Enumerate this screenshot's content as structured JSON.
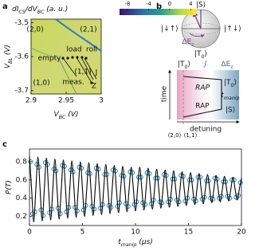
{
  "panel_labels": [
    "a",
    "b",
    "c"
  ],
  "chart_data": [
    {
      "type": "heatmap",
      "xlabel": [
        "V",
        "BC",
        " (V)"
      ],
      "ylabel": [
        "V",
        "BL",
        " (V)"
      ],
      "xlim": [
        2.9,
        3.0
      ],
      "ylim": [
        -3.71,
        -3.49
      ],
      "xticks": [
        2.9,
        2.95,
        3
      ],
      "yticks": [
        -3.5,
        -3.6,
        -3.7
      ],
      "colorbar": {
        "label": [
          "dI",
          "CS",
          "/dV",
          "BC",
          " (a. u.)"
        ],
        "lim": [
          -9.5,
          5
        ],
        "ticks": [
          -8,
          -4,
          0,
          4
        ]
      },
      "region_labels": [
        "(2,0)",
        "(2,1)",
        "(1,0)",
        "(1,1)"
      ],
      "annotations": [
        "empty",
        "load",
        "roll",
        "meas.",
        "J",
        "Z"
      ]
    },
    {
      "type": "line",
      "xlabel": [
        "t",
        "manip",
        " (μs)"
      ],
      "ylabel": "P(T)",
      "xlim": [
        0,
        20
      ],
      "ylim": [
        0.1,
        0.94
      ],
      "xticks": [
        0,
        5,
        10,
        15,
        20
      ],
      "yticks": [
        0.2,
        0.4,
        0.6,
        0.8
      ],
      "series": [
        {
          "type": "scatter",
          "color": "#2b8cc4",
          "x": [
            0.1,
            0.3,
            0.5,
            0.7,
            0.9,
            1.1,
            1.3,
            1.5,
            1.7,
            1.9,
            2.1,
            2.3,
            2.5,
            2.7,
            2.9,
            3.1,
            3.3,
            3.5,
            3.7,
            3.9,
            4.1,
            4.3,
            4.5,
            4.7,
            4.9,
            5.1,
            5.3,
            5.5,
            5.7,
            5.9,
            6.1,
            6.3,
            6.5,
            6.7,
            6.9,
            7.1,
            7.3,
            7.5,
            7.7,
            7.9,
            8.1,
            8.3,
            8.5,
            8.7,
            8.9,
            9.1,
            9.3,
            9.5,
            9.7,
            9.9,
            10.1,
            10.3,
            10.5,
            10.7,
            10.9,
            11.1,
            11.3,
            11.5,
            11.7,
            11.9,
            12.1,
            12.3,
            12.5,
            12.7,
            12.9,
            13.1,
            13.3,
            13.5,
            13.7,
            13.9,
            14.1,
            14.3,
            14.5,
            14.7,
            14.9,
            15.1,
            15.3,
            15.5,
            15.7,
            15.9,
            16.1,
            16.3,
            16.5,
            16.7,
            16.9,
            17.1,
            17.3,
            17.5,
            17.7,
            17.9,
            18.1,
            18.3,
            18.5,
            18.7,
            18.9,
            19.1,
            19.3,
            19.5,
            19.7,
            19.9
          ],
          "values": [
            0.8,
            0.23,
            0.25,
            0.77,
            0.74,
            0.27,
            0.21,
            0.79,
            0.77,
            0.24,
            0.28,
            0.72,
            0.7,
            0.29,
            0.23,
            0.76,
            0.75,
            0.25,
            0.3,
            0.71,
            0.69,
            0.3,
            0.26,
            0.74,
            0.73,
            0.27,
            0.32,
            0.68,
            0.67,
            0.31,
            0.28,
            0.73,
            0.72,
            0.29,
            0.33,
            0.66,
            0.66,
            0.32,
            0.3,
            0.71,
            0.7,
            0.31,
            0.35,
            0.65,
            0.64,
            0.34,
            0.31,
            0.69,
            0.68,
            0.33,
            0.36,
            0.63,
            0.63,
            0.35,
            0.33,
            0.68,
            0.67,
            0.34,
            0.38,
            0.62,
            0.62,
            0.36,
            0.35,
            0.66,
            0.65,
            0.36,
            0.39,
            0.61,
            0.61,
            0.38,
            0.36,
            0.65,
            0.64,
            0.37,
            0.4,
            0.6,
            0.6,
            0.39,
            0.37,
            0.63,
            0.63,
            0.39,
            0.41,
            0.59,
            0.59,
            0.4,
            0.39,
            0.62,
            0.61,
            0.4,
            0.42,
            0.58,
            0.58,
            0.42,
            0.4,
            0.6,
            0.6,
            0.41,
            0.43,
            0.57
          ]
        },
        {
          "type": "line",
          "color": "#000000",
          "x": [
            0,
            0.2,
            0.4,
            0.6,
            0.8,
            1,
            1.2,
            1.4,
            1.6,
            1.8,
            2,
            2.2,
            2.4,
            2.6,
            2.8,
            3,
            3.2,
            3.4,
            3.6,
            3.8,
            4,
            4.2,
            4.4,
            4.6,
            4.8,
            5,
            5.2,
            5.4,
            5.6,
            5.8,
            6,
            6.2,
            6.4,
            6.6,
            6.8,
            7,
            7.2,
            7.4,
            7.6,
            7.8,
            8,
            8.2,
            8.4,
            8.6,
            8.8,
            9,
            9.2,
            9.4,
            9.6,
            9.8,
            10,
            10.2,
            10.4,
            10.6,
            10.8,
            11,
            11.2,
            11.4,
            11.6,
            11.8,
            12,
            12.2,
            12.4,
            12.6,
            12.8,
            13,
            13.2,
            13.4,
            13.6,
            13.8,
            14,
            14.2,
            14.4,
            14.6,
            14.8,
            15,
            15.2,
            15.4,
            15.6,
            15.8,
            16,
            16.2,
            16.4,
            16.6,
            16.8,
            17,
            17.2,
            17.4,
            17.6,
            17.8,
            18,
            18.2,
            18.4,
            18.6,
            18.8,
            19,
            19.2,
            19.4,
            19.6,
            19.8,
            20
          ],
          "values": [
            0.86,
            0.5,
            0.14,
            0.5,
            0.85,
            0.5,
            0.15,
            0.5,
            0.84,
            0.5,
            0.16,
            0.5,
            0.83,
            0.5,
            0.17,
            0.5,
            0.82,
            0.5,
            0.18,
            0.5,
            0.81,
            0.5,
            0.19,
            0.5,
            0.8,
            0.5,
            0.2,
            0.5,
            0.79,
            0.5,
            0.21,
            0.5,
            0.78,
            0.5,
            0.22,
            0.5,
            0.77,
            0.5,
            0.23,
            0.5,
            0.76,
            0.5,
            0.24,
            0.5,
            0.75,
            0.5,
            0.25,
            0.5,
            0.74,
            0.5,
            0.26,
            0.5,
            0.74,
            0.5,
            0.27,
            0.5,
            0.73,
            0.5,
            0.28,
            0.5,
            0.72,
            0.5,
            0.29,
            0.5,
            0.71,
            0.5,
            0.3,
            0.5,
            0.7,
            0.5,
            0.31,
            0.5,
            0.69,
            0.5,
            0.32,
            0.5,
            0.68,
            0.5,
            0.33,
            0.5,
            0.67,
            0.5,
            0.34,
            0.5,
            0.66,
            0.5,
            0.35,
            0.5,
            0.65,
            0.5,
            0.36,
            0.5,
            0.64,
            0.5,
            0.37,
            0.5,
            0.63,
            0.5,
            0.38,
            0.5,
            0.62
          ]
        }
      ]
    }
  ],
  "diagram": {
    "bloch": {
      "top": "|S⟩",
      "bottom": [
        "|T",
        "0",
        "⟩"
      ],
      "left": "|↓↑⟩",
      "right": "|↑↓⟩",
      "axis_label": [
        "ΔE",
        "z"
      ]
    },
    "energy": {
      "header": [
        [
          "|T",
          "0",
          "⟩"
        ],
        "J",
        [
          "ΔE",
          "z"
        ]
      ],
      "time": "time",
      "detuning": "detuning",
      "rap_upper": "RAP",
      "rap_lower": "RAP",
      "right_labels": [
        [
          "|T",
          "0",
          "⟩"
        ],
        [
          "t",
          "manip"
        ],
        "|S⟩"
      ],
      "charge_states": [
        "(2,0)",
        "(1,1)"
      ]
    }
  }
}
